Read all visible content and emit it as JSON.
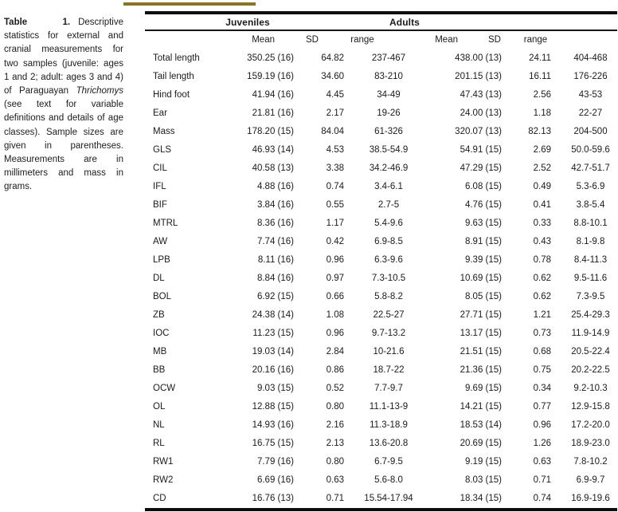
{
  "colors": {
    "gold_rule": "#8a7426",
    "black_rule": "#0d0d0d",
    "text": "#1b1b1b"
  },
  "caption": {
    "label": "Table 1.",
    "text_before_italic": "Descriptive statistics for external and cranial measurements for two samples (juvenile: ages 1 and 2; adult: ages 3 and 4) of Paraguayan",
    "italic_word": "Thrichomys",
    "text_after_italic": "(see text for variable definitions and details of age classes). Sample sizes are given in parentheses. Measurements are in millimeters and mass in grams."
  },
  "table": {
    "groups": {
      "juveniles": "Juveniles",
      "adults": "Adults"
    },
    "subheaders": [
      "Mean",
      "SD",
      "range",
      "Mean",
      "SD",
      "range"
    ],
    "rows": [
      [
        "Total length",
        "350.25 (16)",
        "64.82",
        "237-467",
        "438.00 (13)",
        "24.11",
        "404-468"
      ],
      [
        "Tail length",
        "159.19 (16)",
        "34.60",
        "83-210",
        "201.15 (13)",
        "16.11",
        "176-226"
      ],
      [
        "Hind foot",
        "41.94 (16)",
        "4.45",
        "34-49",
        "47.43 (13)",
        "2.56",
        "43-53"
      ],
      [
        "Ear",
        "21.81 (16)",
        "2.17",
        "19-26",
        "24.00 (13)",
        "1.18",
        "22-27"
      ],
      [
        "Mass",
        "178.20 (15)",
        "84.04",
        "61-326",
        "320.07 (13)",
        "82.13",
        "204-500"
      ],
      [
        "GLS",
        "46.93 (14)",
        "4.53",
        "38.5-54.9",
        "54.91 (15)",
        "2.69",
        "50.0-59.6"
      ],
      [
        "CIL",
        "40.58 (13)",
        "3.38",
        "34.2-46.9",
        "47.29 (15)",
        "2.52",
        "42.7-51.7"
      ],
      [
        "IFL",
        "4.88 (16)",
        "0.74",
        "3.4-6.1",
        "6.08 (15)",
        "0.49",
        "5.3-6.9"
      ],
      [
        "BIF",
        "3.84 (16)",
        "0.55",
        "2.7-5",
        "4.76 (15)",
        "0.41",
        "3.8-5.4"
      ],
      [
        "MTRL",
        "8.36 (16)",
        "1.17",
        "5.4-9.6",
        "9.63 (15)",
        "0.33",
        "8.8-10.1"
      ],
      [
        "AW",
        "7.74 (16)",
        "0.42",
        "6.9-8.5",
        "8.91 (15)",
        "0.43",
        "8.1-9.8"
      ],
      [
        "LPB",
        "8.11 (16)",
        "0.96",
        "6.3-9.6",
        "9.39 (15)",
        "0.78",
        "8.4-11.3"
      ],
      [
        "DL",
        "8.84 (16)",
        "0.97",
        "7.3-10.5",
        "10.69 (15)",
        "0.62",
        "9.5-11.6"
      ],
      [
        "BOL",
        "6.92 (15)",
        "0.66",
        "5.8-8.2",
        "8.05 (15)",
        "0.62",
        "7.3-9.5"
      ],
      [
        "ZB",
        "24.38 (14)",
        "1.08",
        "22.5-27",
        "27.71 (15)",
        "1.21",
        "25.4-29.3"
      ],
      [
        "IOC",
        "11.23 (15)",
        "0.96",
        "9.7-13.2",
        "13.17 (15)",
        "0.73",
        "11.9-14.9"
      ],
      [
        "MB",
        "19.03 (14)",
        "2.84",
        "10-21.6",
        "21.51 (15)",
        "0.68",
        "20.5-22.4"
      ],
      [
        "BB",
        "20.16 (16)",
        "0.86",
        "18.7-22",
        "21.36 (15)",
        "0.75",
        "20.2-22.5"
      ],
      [
        "OCW",
        "9.03 (15)",
        "0.52",
        "7.7-9.7",
        "9.69 (15)",
        "0.34",
        "9.2-10.3"
      ],
      [
        "OL",
        "12.88 (15)",
        "0.80",
        "11.1-13-9",
        "14.21 (15)",
        "0.77",
        "12.9-15.8"
      ],
      [
        "NL",
        "14.93 (16)",
        "2.16",
        "11.3-18.9",
        "18.53 (14)",
        "0.96",
        "17.2-20.0"
      ],
      [
        "RL",
        "16.75 (15)",
        "2.13",
        "13.6-20.8",
        "20.69 (15)",
        "1.26",
        "18.9-23.0"
      ],
      [
        "RW1",
        "7.79 (16)",
        "0.80",
        "6.7-9.5",
        "9.19 (15)",
        "0.63",
        "7.8-10.2"
      ],
      [
        "RW2",
        "6.69 (16)",
        "0.63",
        "5.6-8.0",
        "8.03 (15)",
        "0.71",
        "6.9-9.7"
      ],
      [
        "CD",
        "16.76 (13)",
        "0.71",
        "15.54-17.94",
        "18.34 (15)",
        "0.74",
        "16.9-19.6"
      ]
    ]
  }
}
